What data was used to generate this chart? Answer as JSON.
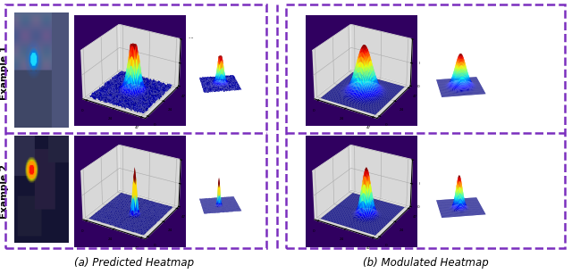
{
  "title_a": "(a) Predicted Heatmap",
  "title_b": "(b) Modulated Heatmap",
  "example1_label": "Example 1",
  "example2_label": "Example 2",
  "border_color": "#7B2FBE",
  "background_color": "#ffffff",
  "grid_size": 48,
  "cmap": "jet",
  "pane_color": "#e8e8e8",
  "floor_color": "#5500aa",
  "elev_main": 28,
  "azim_main": -60,
  "elev_side": 22,
  "azim_side": -10
}
